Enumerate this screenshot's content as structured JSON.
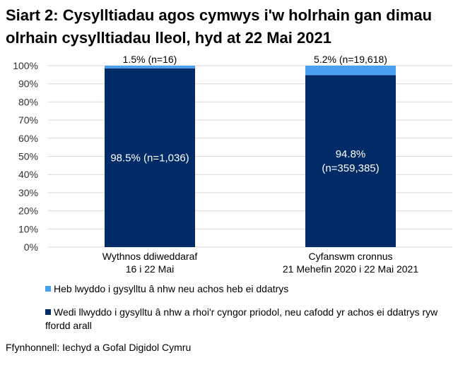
{
  "chart_data": {
    "type": "bar",
    "stacked": true,
    "title": "Siart 2: Cysylltiadau agos cymwys i'w holrhain gan dimau olrhain cysylltiadau lleol, hyd at 22 Mai 2021",
    "categories": [
      [
        "Wythnos ddiweddaraf",
        "16 i 22 Mai"
      ],
      [
        "Cyfanswm cronnus",
        "21 Mehefin 2020 i 22 Mai 2021"
      ]
    ],
    "ylim": [
      0,
      100
    ],
    "yticks": [
      "0%",
      "10%",
      "20%",
      "30%",
      "40%",
      "50%",
      "60%",
      "70%",
      "80%",
      "90%",
      "100%"
    ],
    "grid": true,
    "legend_position": "bottom",
    "series": [
      {
        "name": "Wedi llwyddo i gysylltu â nhw a rhoi'r cyngor priodol, neu cafodd yr achos ei ddatrys ryw ffordd arall",
        "color": "#002b66",
        "values": [
          98.5,
          94.8
        ],
        "labels": [
          [
            "98.5% (n=1,036)"
          ],
          [
            "94.8%",
            "(n=359,385)"
          ]
        ]
      },
      {
        "name": "Heb lwyddo i gysylltu â nhw neu achos heb ei ddatrys",
        "color": "#4aa0f0",
        "values": [
          1.5,
          5.2
        ],
        "labels": [
          [
            "1.5% (n=16)"
          ],
          [
            "5.2% (n=19,618)"
          ]
        ]
      }
    ]
  },
  "source": "Ffynhonnell: Iechyd a Gofal Digidol Cymru"
}
